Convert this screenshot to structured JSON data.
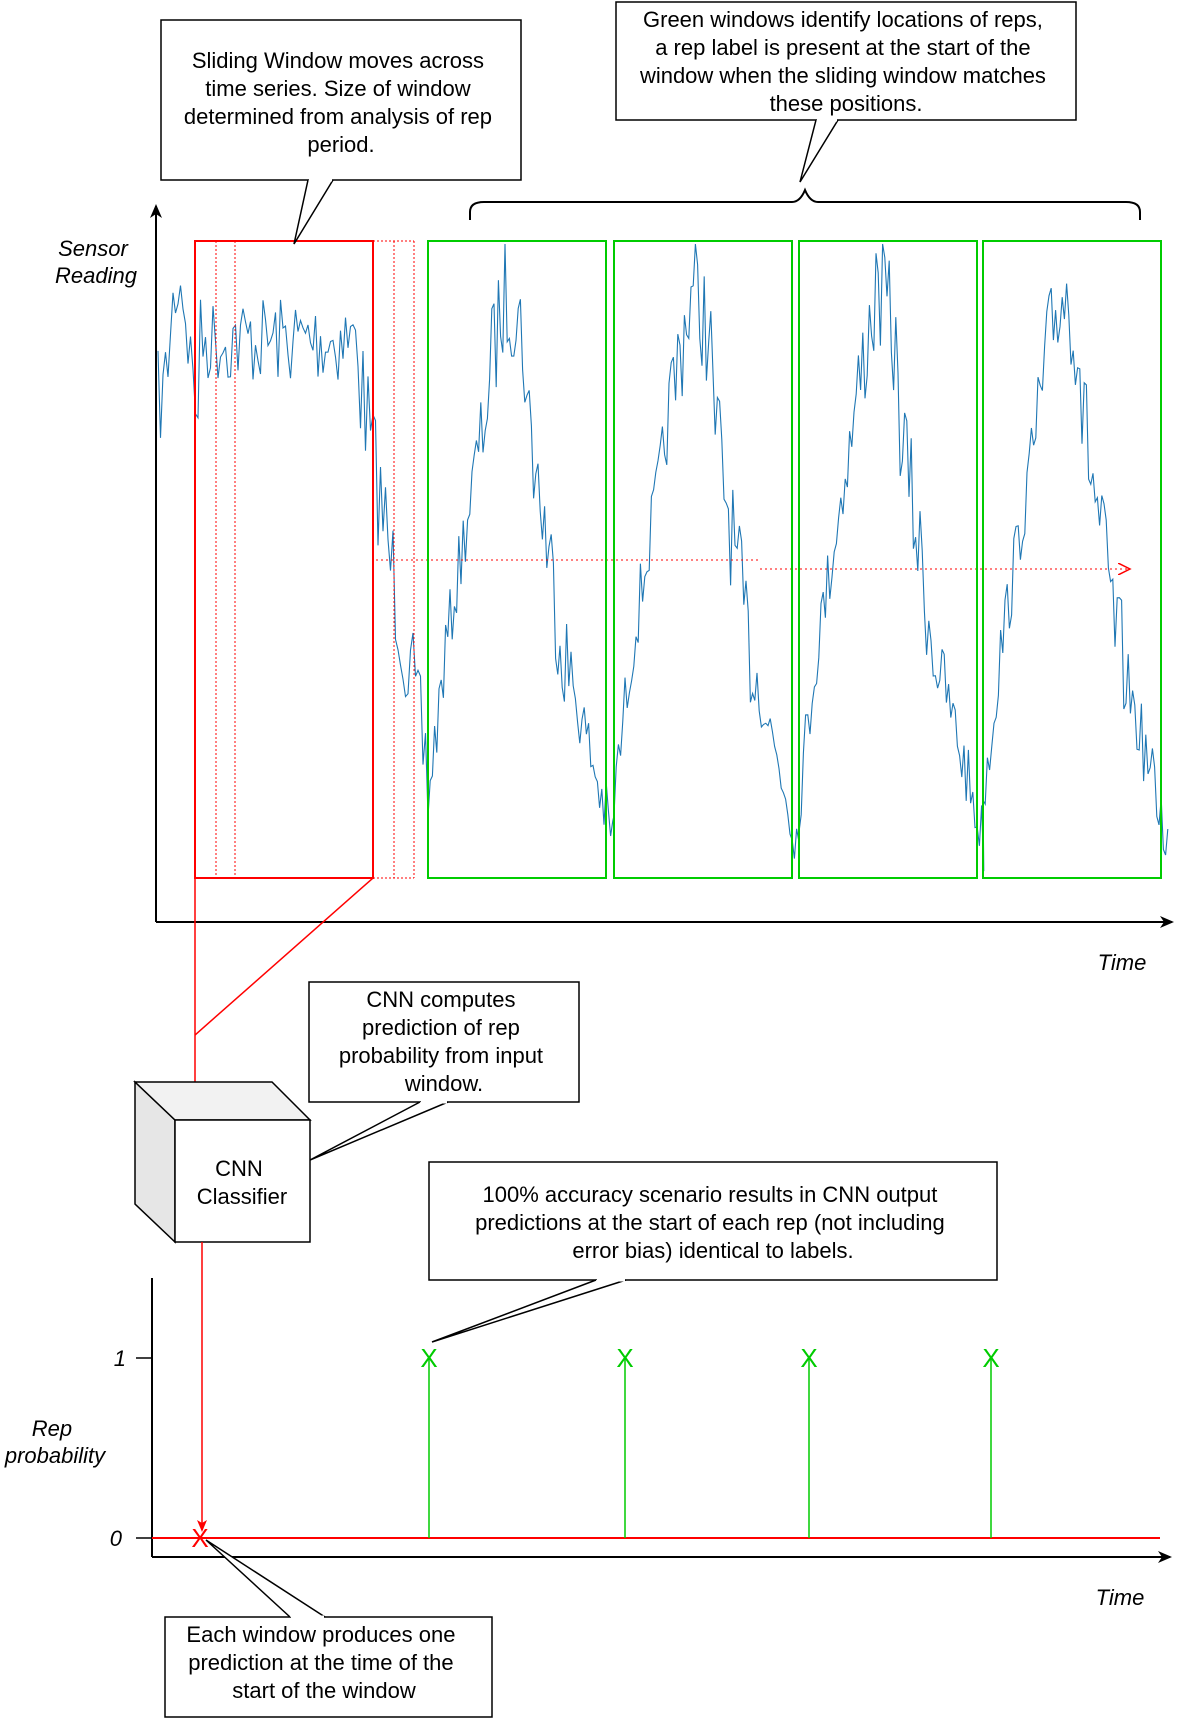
{
  "callouts": {
    "sliding_window": [
      "Sliding Window moves across",
      "time series. Size of window",
      "determined from analysis of rep",
      "period."
    ],
    "green_windows": [
      "Green windows identify locations of reps,",
      "a rep label is present at the start of the",
      "window when the sliding window matches",
      "these positions."
    ],
    "cnn_computes": [
      "CNN computes",
      "prediction of rep",
      "probability from input",
      "window."
    ],
    "accuracy": [
      "100% accuracy scenario results in CNN output",
      "predictions at the start of each rep (not including",
      "error bias) identical to labels."
    ],
    "each_window": [
      "Each window produces one",
      "prediction at the time of the",
      "start of the window"
    ]
  },
  "top_chart": {
    "ylabel": [
      "Sensor",
      "Reading"
    ],
    "xlabel": "Time"
  },
  "cnn_box": {
    "label": [
      "CNN",
      "Classifier"
    ]
  },
  "bottom_chart": {
    "ylabel": [
      "Rep",
      "probability"
    ],
    "xlabel": "Time",
    "tick_1": "1",
    "tick_0": "0",
    "predicted_marker": "X",
    "label_marker": "X"
  },
  "colors": {
    "window_red": "#ff0000",
    "rep_green": "#00cc00",
    "signal_blue": "#1f77b4"
  },
  "chart_data": {
    "type": "line",
    "xlabel": "Time",
    "ylabel": "Rep probability",
    "ylim": [
      0,
      1
    ],
    "series": [
      {
        "name": "",
        "x": [
          1,
          2,
          3,
          4
        ],
        "values": [
          1,
          1,
          1,
          1
        ]
      }
    ]
  }
}
